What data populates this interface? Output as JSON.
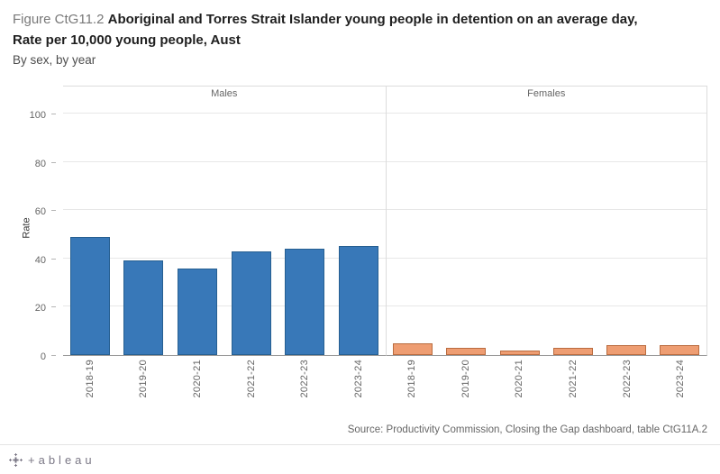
{
  "title": {
    "figure_label": "Figure CtG11.2",
    "line1": "Aboriginal and Torres Strait Islander young people in detention on an average day,",
    "line2": "Rate per 10,000 young people, Aust",
    "subtitle": "By sex, by year"
  },
  "chart_data": {
    "type": "bar",
    "title": "Aboriginal and Torres Strait Islander young people in detention on an average day, Rate per 10,000 young people, Aust",
    "categories": [
      "2018-19",
      "2019-20",
      "2020-21",
      "2021-22",
      "2022-23",
      "2023-24"
    ],
    "panels": [
      {
        "name": "Males",
        "color": "#3878b8",
        "border": "#265f91",
        "values": [
          49,
          39,
          36,
          43,
          44,
          45
        ]
      },
      {
        "name": "Females",
        "color": "#ee9d72",
        "border": "#ba6c3f",
        "values": [
          5,
          3,
          2,
          3,
          4,
          4
        ]
      }
    ],
    "ylabel": "Rate",
    "yticks": [
      0,
      20,
      40,
      60,
      80,
      100
    ],
    "ylim": [
      0,
      105
    ],
    "grid": true,
    "legend": "none"
  },
  "source": "Source: Productivity Commission, Closing the Gap dashboard, table CtG11A.2",
  "footer": {
    "logo_text": "+ableau"
  }
}
